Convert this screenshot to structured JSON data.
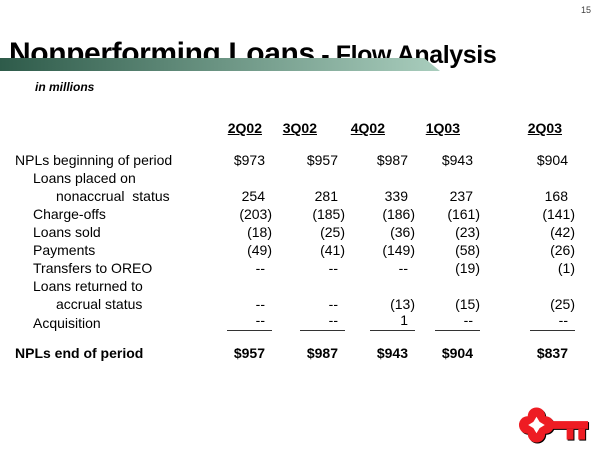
{
  "page_number": "15",
  "title": {
    "main": "Nonperforming Loans",
    "sub": " - Flow Analysis"
  },
  "subtitle": "in millions",
  "colors": {
    "accent_bar_start": "#2e5b4a",
    "accent_bar_end": "#a9cdbd",
    "logo_red": "#ee1c23"
  },
  "table": {
    "columns": [
      "2Q02",
      "3Q02",
      "4Q02",
      "1Q03",
      "2Q03"
    ],
    "rows": [
      {
        "label": "NPLs beginning of period",
        "indent": 0,
        "bold": false,
        "values": [
          "$973",
          "$957",
          "$987",
          "$943",
          "$904"
        ]
      },
      {
        "label": "Loans placed on",
        "indent": 1,
        "bold": false,
        "values": [
          "",
          "",
          "",
          "",
          ""
        ]
      },
      {
        "label": "nonaccrual  status",
        "indent": 2,
        "bold": false,
        "values": [
          "254",
          "281",
          "339",
          "237",
          "168"
        ]
      },
      {
        "label": "Charge-offs",
        "indent": 1,
        "bold": false,
        "values": [
          "(203)",
          "(185)",
          "(186)",
          "(161)",
          "(141)"
        ]
      },
      {
        "label": "Loans sold",
        "indent": 1,
        "bold": false,
        "values": [
          "(18)",
          "(25)",
          "(36)",
          "(23)",
          "(42)"
        ]
      },
      {
        "label": "Payments",
        "indent": 1,
        "bold": false,
        "values": [
          "(49)",
          "(41)",
          "(149)",
          "(58)",
          "(26)"
        ]
      },
      {
        "label": "Transfers to OREO",
        "indent": 1,
        "bold": false,
        "values": [
          "--",
          "--",
          "--",
          "(19)",
          "(1)"
        ]
      },
      {
        "label": "Loans returned to",
        "indent": 1,
        "bold": false,
        "values": [
          "",
          "",
          "",
          "",
          ""
        ]
      },
      {
        "label": "accrual status",
        "indent": 2,
        "bold": false,
        "values": [
          "--",
          "--",
          "(13)",
          "(15)",
          "(25)"
        ]
      },
      {
        "label": "Acquisition",
        "indent": 1,
        "bold": false,
        "sumline": true,
        "values": [
          "--",
          "--",
          "1",
          "--",
          "--"
        ]
      },
      {
        "label": "NPLs end of period",
        "indent": 0,
        "bold": true,
        "spacer_before": true,
        "values": [
          "$957",
          "$987",
          "$943",
          "$904",
          "$837"
        ]
      }
    ]
  },
  "chart_data": {
    "type": "table",
    "title": "Nonperforming Loans - Flow Analysis",
    "unit": "in millions",
    "categories": [
      "2Q02",
      "3Q02",
      "4Q02",
      "1Q03",
      "2Q03"
    ],
    "series": [
      {
        "name": "NPLs beginning of period",
        "values": [
          973,
          957,
          987,
          943,
          904
        ]
      },
      {
        "name": "Loans placed on nonaccrual status",
        "values": [
          254,
          281,
          339,
          237,
          168
        ]
      },
      {
        "name": "Charge-offs",
        "values": [
          -203,
          -185,
          -186,
          -161,
          -141
        ]
      },
      {
        "name": "Loans sold",
        "values": [
          -18,
          -25,
          -36,
          -23,
          -42
        ]
      },
      {
        "name": "Payments",
        "values": [
          -49,
          -41,
          -149,
          -58,
          -26
        ]
      },
      {
        "name": "Transfers to OREO",
        "values": [
          null,
          null,
          null,
          -19,
          -1
        ]
      },
      {
        "name": "Loans returned to accrual status",
        "values": [
          null,
          null,
          -13,
          -15,
          -25
        ]
      },
      {
        "name": "Acquisition",
        "values": [
          null,
          null,
          1,
          null,
          null
        ]
      },
      {
        "name": "NPLs end of period",
        "values": [
          957,
          987,
          943,
          904,
          837
        ]
      }
    ]
  }
}
